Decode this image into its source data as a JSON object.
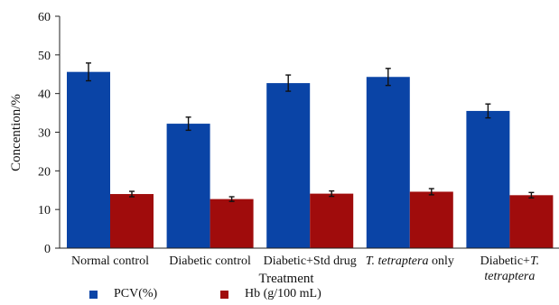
{
  "chart_data": {
    "type": "bar",
    "categories": [
      {
        "text": "Normal control",
        "italic_part": ""
      },
      {
        "text": "Diabetic control",
        "italic_part": ""
      },
      {
        "text": "Diabetic+Std drug",
        "italic_part": ""
      },
      {
        "text": " only",
        "italic_part": "T. tetraptera"
      },
      {
        "text": "Diabetic+",
        "italic_part": "T. tetraptera"
      }
    ],
    "series": [
      {
        "name": "PCV(%)",
        "color": "#0a44a6",
        "values": [
          45.6,
          32.2,
          42.7,
          44.3,
          35.5
        ],
        "errors": [
          2.3,
          1.7,
          2.1,
          2.2,
          1.8
        ]
      },
      {
        "name": "Hb (g/100 mL)",
        "color": "#a00c0c",
        "values": [
          14.0,
          12.7,
          14.1,
          14.6,
          13.7
        ],
        "errors": [
          0.7,
          0.6,
          0.7,
          0.8,
          0.7
        ]
      }
    ],
    "xlabel": "Treatment",
    "ylabel": "Concention/%",
    "ylim": [
      0,
      60
    ],
    "yticks": [
      0,
      10,
      20,
      30,
      40,
      50,
      60
    ],
    "grid": false,
    "legend_position": "bottom"
  }
}
